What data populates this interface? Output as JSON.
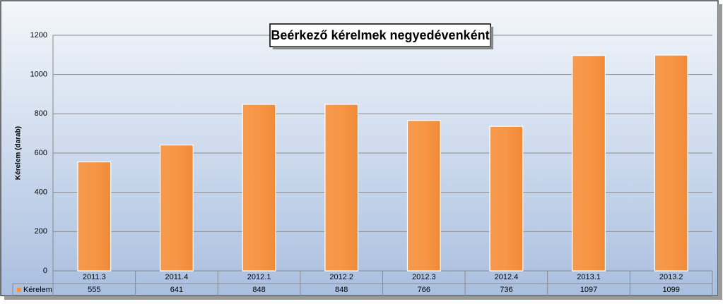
{
  "chart_data": {
    "type": "bar",
    "title": "Beérkező kérelmek negyedévenként",
    "y_label": "Kérelem (darab)",
    "categories": [
      "2011.3",
      "2011.4",
      "2012.1",
      "2012.2",
      "2012.3",
      "2012.4",
      "2013.1",
      "2013.2"
    ],
    "series": [
      {
        "name": "Kérelem",
        "color": "#f79646",
        "values": [
          555,
          641,
          848,
          848,
          766,
          736,
          1097,
          1099
        ]
      }
    ],
    "ylim": [
      0,
      1200
    ],
    "yticks": [
      0,
      200,
      400,
      600,
      800,
      1000,
      1200
    ],
    "grid": true
  }
}
